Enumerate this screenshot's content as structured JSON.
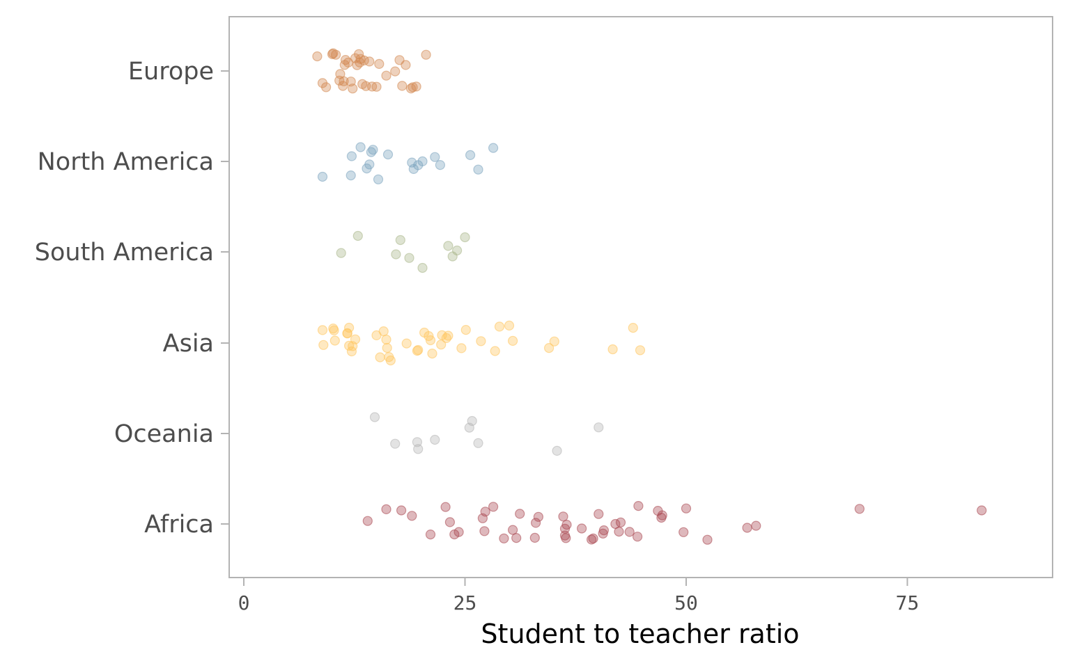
{
  "chart_data": {
    "type": "scatter",
    "title": "",
    "xlabel": "Student to teacher ratio",
    "ylabel": "",
    "xlim": [
      -1.5,
      91.5
    ],
    "x_ticks": [
      0,
      25,
      50,
      75
    ],
    "x_tick_labels": [
      "0",
      "25",
      "50",
      "75"
    ],
    "grid": false,
    "legend": "none",
    "jitter": "vertical",
    "categories": [
      "Europe",
      "North America",
      "South America",
      "Asia",
      "Oceania",
      "Africa"
    ],
    "series": [
      {
        "category": "Europe",
        "color": "#d2874e",
        "x": [
          8.3,
          8.9,
          9.3,
          10.0,
          10.1,
          10.4,
          10.8,
          10.9,
          11.2,
          11.3,
          11.4,
          11.5,
          11.8,
          12.1,
          12.3,
          12.6,
          12.8,
          13.0,
          13.1,
          13.2,
          13.4,
          13.6,
          13.8,
          14.2,
          14.5,
          15.0,
          15.3,
          16.1,
          17.1,
          17.6,
          17.9,
          18.3,
          18.9,
          19.1,
          19.5,
          20.6
        ]
      },
      {
        "category": "North America",
        "color": "#7aa2bd",
        "x": [
          8.9,
          12.1,
          12.2,
          13.2,
          13.9,
          14.2,
          14.4,
          14.6,
          15.2,
          16.3,
          19.0,
          19.2,
          19.7,
          20.2,
          21.6,
          22.2,
          25.6,
          26.5,
          28.2
        ]
      },
      {
        "category": "South America",
        "color": "#a9b68a",
        "x": [
          11.0,
          12.9,
          17.2,
          17.7,
          18.7,
          20.2,
          23.1,
          23.6,
          24.1,
          25.0
        ]
      },
      {
        "category": "Asia",
        "color": "#ffc55c",
        "x": [
          8.9,
          9.0,
          10.1,
          10.2,
          10.3,
          11.7,
          11.7,
          11.9,
          11.9,
          12.2,
          12.3,
          12.6,
          15.0,
          15.4,
          15.8,
          16.1,
          16.2,
          16.4,
          16.6,
          18.4,
          19.6,
          19.7,
          20.4,
          20.9,
          21.1,
          21.3,
          22.3,
          22.4,
          22.9,
          23.1,
          24.6,
          25.1,
          26.8,
          28.4,
          28.9,
          30.0,
          30.4,
          34.5,
          35.1,
          41.7,
          44.0,
          44.8
        ]
      },
      {
        "category": "Oceania",
        "color": "#b5b5b5",
        "x": [
          14.8,
          17.1,
          19.6,
          19.7,
          21.6,
          25.5,
          25.8,
          26.5,
          35.4,
          40.1
        ]
      },
      {
        "category": "Africa",
        "color": "#a8454e",
        "x": [
          14.0,
          16.1,
          17.8,
          19.0,
          21.1,
          22.8,
          23.3,
          23.8,
          24.3,
          27.0,
          27.2,
          27.3,
          28.2,
          29.4,
          30.4,
          30.8,
          31.2,
          32.9,
          33.0,
          33.3,
          36.1,
          36.3,
          36.3,
          36.4,
          36.5,
          38.2,
          39.3,
          39.5,
          40.1,
          40.6,
          40.7,
          42.0,
          42.4,
          42.6,
          43.6,
          44.5,
          44.6,
          46.8,
          47.2,
          47.3,
          49.7,
          50.0,
          52.4,
          56.9,
          57.9,
          69.6,
          83.4
        ]
      }
    ]
  }
}
